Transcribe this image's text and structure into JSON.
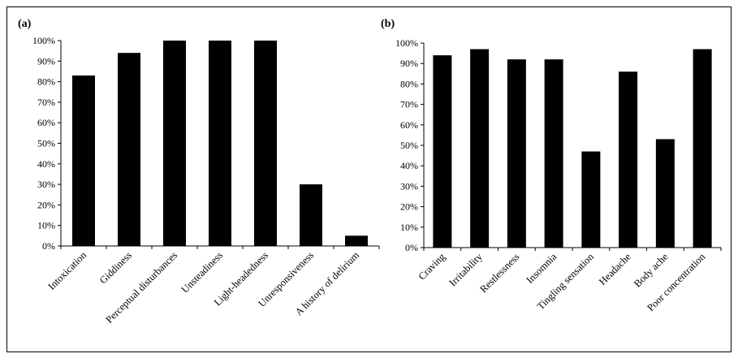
{
  "chart_data": [
    {
      "type": "bar",
      "panel_label": "(a)",
      "categories": [
        "Intoxication",
        "Giddiness",
        "Perceptual disturbances",
        "Unsteadiness",
        "Light-headedness",
        "Unresponsiveness",
        "A history of delirium"
      ],
      "values": [
        83,
        94,
        100,
        100,
        100,
        30,
        5
      ],
      "y_ticks": [
        "0%",
        "10%",
        "20%",
        "30%",
        "40%",
        "50%",
        "60%",
        "70%",
        "80%",
        "90%",
        "100%"
      ],
      "ylim": [
        0,
        100
      ],
      "y_unit": "%",
      "grid": false,
      "bar_color": "#000000"
    },
    {
      "type": "bar",
      "panel_label": "(b)",
      "categories": [
        "Craving",
        "Irritability",
        "Restlessness",
        "Insomnia",
        "Tingling sensation",
        "Headache",
        "Body ache",
        "Poor concentration"
      ],
      "values": [
        94,
        97,
        92,
        92,
        47,
        86,
        53,
        97
      ],
      "y_ticks": [
        "0%",
        "10%",
        "20%",
        "30%",
        "40%",
        "50%",
        "60%",
        "70%",
        "80%",
        "90%",
        "100%"
      ],
      "ylim": [
        0,
        100
      ],
      "y_unit": "%",
      "grid": false,
      "bar_color": "#000000"
    }
  ]
}
